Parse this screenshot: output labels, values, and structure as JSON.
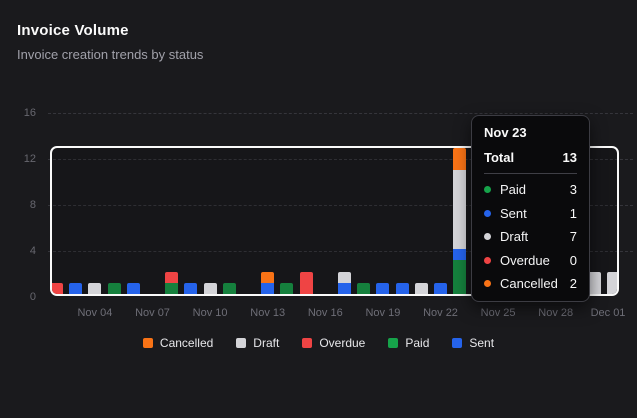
{
  "header": {
    "title": "Invoice Volume",
    "subtitle": "Invoice creation trends by status"
  },
  "chart_data": {
    "type": "bar",
    "stacked": true,
    "title": "Invoice Volume",
    "ylim": [
      0,
      16
    ],
    "yticks": [
      0,
      4,
      8,
      12,
      16
    ],
    "grid": true,
    "stack_order": [
      "Paid",
      "Sent",
      "Draft",
      "Overdue",
      "Cancelled"
    ],
    "bar_colors": {
      "Paid": "#15803d",
      "Sent": "#2563eb",
      "Draft": "#d4d4d8",
      "Overdue": "#ef4444",
      "Cancelled": "#f97316"
    },
    "xticks": [
      {
        "label": "Nov 04",
        "day": 2
      },
      {
        "label": "Nov 07",
        "day": 5
      },
      {
        "label": "Nov 10",
        "day": 8
      },
      {
        "label": "Nov 13",
        "day": 11
      },
      {
        "label": "Nov 16",
        "day": 14
      },
      {
        "label": "Nov 19",
        "day": 17
      },
      {
        "label": "Nov 22",
        "day": 20
      },
      {
        "label": "Nov 25",
        "day": 23
      },
      {
        "label": "Nov 28",
        "day": 26
      },
      {
        "label": "Dec 01",
        "day": 29
      }
    ],
    "bars": [
      {
        "date": "Nov 02",
        "day": 0,
        "segments": [
          {
            "status": "Overdue",
            "value": 1
          }
        ]
      },
      {
        "date": "Nov 03",
        "day": 1,
        "segments": [
          {
            "status": "Sent",
            "value": 1
          }
        ]
      },
      {
        "date": "Nov 04",
        "day": 2,
        "segments": [
          {
            "status": "Draft",
            "value": 1
          }
        ]
      },
      {
        "date": "Nov 05",
        "day": 3,
        "segments": [
          {
            "status": "Paid",
            "value": 1
          }
        ]
      },
      {
        "date": "Nov 06",
        "day": 4,
        "segments": [
          {
            "status": "Sent",
            "value": 1
          }
        ]
      },
      {
        "date": "Nov 07",
        "day": 5,
        "segments": []
      },
      {
        "date": "Nov 08",
        "day": 6,
        "segments": [
          {
            "status": "Paid",
            "value": 1
          },
          {
            "status": "Overdue",
            "value": 1
          }
        ]
      },
      {
        "date": "Nov 09",
        "day": 7,
        "segments": [
          {
            "status": "Sent",
            "value": 1
          }
        ]
      },
      {
        "date": "Nov 10",
        "day": 8,
        "segments": [
          {
            "status": "Draft",
            "value": 1
          }
        ]
      },
      {
        "date": "Nov 11",
        "day": 9,
        "segments": [
          {
            "status": "Paid",
            "value": 1
          }
        ]
      },
      {
        "date": "Nov 12",
        "day": 10,
        "segments": []
      },
      {
        "date": "Nov 13",
        "day": 11,
        "segments": [
          {
            "status": "Sent",
            "value": 1
          },
          {
            "status": "Cancelled",
            "value": 1
          }
        ]
      },
      {
        "date": "Nov 14",
        "day": 12,
        "segments": [
          {
            "status": "Paid",
            "value": 1
          }
        ]
      },
      {
        "date": "Nov 15",
        "day": 13,
        "segments": [
          {
            "status": "Overdue",
            "value": 2
          }
        ]
      },
      {
        "date": "Nov 16",
        "day": 14,
        "segments": []
      },
      {
        "date": "Nov 17",
        "day": 15,
        "segments": [
          {
            "status": "Sent",
            "value": 1
          },
          {
            "status": "Draft",
            "value": 1
          }
        ]
      },
      {
        "date": "Nov 18",
        "day": 16,
        "segments": [
          {
            "status": "Paid",
            "value": 1
          }
        ]
      },
      {
        "date": "Nov 19",
        "day": 17,
        "segments": [
          {
            "status": "Sent",
            "value": 1
          }
        ]
      },
      {
        "date": "Nov 20",
        "day": 18,
        "segments": [
          {
            "status": "Sent",
            "value": 1
          }
        ]
      },
      {
        "date": "Nov 21",
        "day": 19,
        "segments": [
          {
            "status": "Draft",
            "value": 1
          }
        ]
      },
      {
        "date": "Nov 22",
        "day": 20,
        "segments": [
          {
            "status": "Sent",
            "value": 1
          }
        ]
      },
      {
        "date": "Nov 23",
        "day": 21,
        "segments": [
          {
            "status": "Paid",
            "value": 3
          },
          {
            "status": "Sent",
            "value": 1
          },
          {
            "status": "Draft",
            "value": 7
          },
          {
            "status": "Cancelled",
            "value": 2
          }
        ]
      },
      {
        "date": "Nov 30",
        "day": 28,
        "segments": [
          {
            "status": "Draft",
            "value": 2
          }
        ]
      },
      {
        "date": "Dec 01",
        "day": 29,
        "segments": [
          {
            "status": "Draft",
            "value": 2
          }
        ]
      }
    ]
  },
  "tooltip": {
    "date": "Nov 23",
    "total_label": "Total",
    "total": "13",
    "rows": [
      {
        "label": "Paid",
        "value": "3",
        "color": "#16a34a"
      },
      {
        "label": "Sent",
        "value": "1",
        "color": "#2563eb"
      },
      {
        "label": "Draft",
        "value": "7",
        "color": "#d4d4d8"
      },
      {
        "label": "Overdue",
        "value": "0",
        "color": "#ef4444"
      },
      {
        "label": "Cancelled",
        "value": "2",
        "color": "#f97316"
      }
    ]
  },
  "legend": {
    "items": [
      {
        "label": "Cancelled",
        "color": "#f97316"
      },
      {
        "label": "Draft",
        "color": "#d4d4d8"
      },
      {
        "label": "Overdue",
        "color": "#ef4444"
      },
      {
        "label": "Paid",
        "color": "#16a34a"
      },
      {
        "label": "Sent",
        "color": "#2563eb"
      }
    ]
  }
}
